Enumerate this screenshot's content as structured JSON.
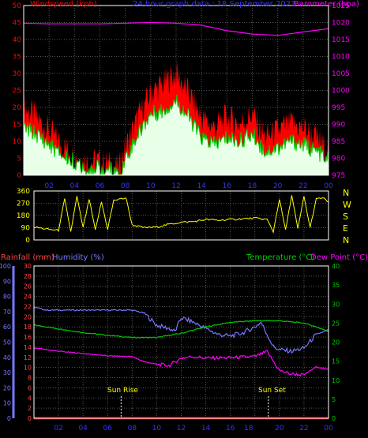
{
  "header": {
    "left": "Windspeed (kph)",
    "center": "24 hour graph data : 18 September 2023",
    "right": "Barometer (hpa)"
  },
  "colors": {
    "wind_gust": "#ff0000",
    "wind_avg": "#00cc00",
    "wind_fill": "#e8ffe8",
    "barometer": "#ff00ff",
    "direction": "#ffff00",
    "rain_axis": "#ff4444",
    "humidity": "#7777ff",
    "temperature": "#00cc00",
    "dew_point": "#ff00ff",
    "rainfall_line": "#ff0000"
  },
  "middle": {
    "compass_letters": [
      "N",
      "W",
      "S",
      "E",
      "N"
    ]
  },
  "lower_header": {
    "rainfall": "Rainfall (mm)",
    "humidity": "Humidity (%)",
    "temperature": "Temperature (°C)",
    "dewpoint": "Dew Point (°C)"
  },
  "annotations": {
    "sunrise": "Sun Rise",
    "sunset": "Sun Set"
  },
  "chart_data": [
    {
      "type": "line",
      "title": "24 hour graph data : 18 September 2023",
      "x_ticks": [
        "02",
        "04",
        "06",
        "08",
        "10",
        "12",
        "14",
        "16",
        "18",
        "20",
        "22",
        "00"
      ],
      "left_axis": {
        "label": "Windspeed (kph)",
        "ticks": [
          0,
          5,
          10,
          15,
          20,
          25,
          30,
          35,
          40,
          45,
          50
        ],
        "ylim": [
          0,
          50
        ]
      },
      "right_axis": {
        "label": "Barometer (hpa)",
        "ticks": [
          975,
          980,
          985,
          990,
          995,
          1000,
          1005,
          1010,
          1015,
          1020,
          1025
        ],
        "ylim": [
          975,
          1025
        ]
      },
      "series": [
        {
          "name": "Windspeed (kph)",
          "hours": [
            0,
            1,
            2,
            3,
            4,
            5,
            6,
            7,
            7.5,
            8,
            9,
            10,
            11,
            12,
            13,
            14,
            15,
            16,
            17,
            18,
            19,
            20,
            21,
            22,
            23,
            24
          ],
          "gust": [
            20,
            17,
            13,
            9,
            6,
            4,
            4,
            3,
            2,
            8,
            17,
            24,
            27,
            30,
            24,
            17,
            14,
            17,
            15,
            18,
            11,
            13,
            15,
            14,
            11,
            7
          ],
          "average": [
            14,
            12,
            9,
            6,
            4,
            3,
            2,
            2,
            1,
            5,
            12,
            18,
            19,
            22,
            17,
            11,
            9,
            11,
            10,
            12,
            7,
            8,
            10,
            9,
            7,
            5
          ]
        },
        {
          "name": "Barometer (hpa)",
          "hours": [
            0,
            2,
            4,
            6,
            8,
            10,
            12,
            14,
            16,
            18,
            20,
            22,
            24
          ],
          "values": [
            1019.8,
            1019.6,
            1019.6,
            1019.6,
            1019.8,
            1020,
            1019.8,
            1019.2,
            1017.6,
            1016.6,
            1016.2,
            1017.2,
            1018.2
          ]
        }
      ]
    },
    {
      "type": "line",
      "y_ticks": [
        0,
        90,
        180,
        270,
        360
      ],
      "ylim": [
        0,
        360
      ],
      "series": [
        {
          "name": "Wind direction (°)",
          "hours": [
            0,
            1,
            2,
            2.5,
            3,
            3.5,
            4,
            4.5,
            5,
            5.5,
            6,
            6.5,
            7,
            7.5,
            8,
            9,
            10,
            11,
            12,
            13,
            14,
            15,
            16,
            17,
            18,
            19,
            19.5,
            20,
            20.5,
            21,
            21.5,
            22,
            22.5,
            23,
            23.5,
            24
          ],
          "values": [
            95,
            80,
            70,
            300,
            60,
            320,
            90,
            300,
            70,
            280,
            80,
            290,
            300,
            310,
            110,
            90,
            95,
            115,
            130,
            135,
            150,
            145,
            150,
            155,
            160,
            150,
            60,
            300,
            70,
            330,
            80,
            320,
            90,
            300,
            310,
            280
          ]
        }
      ]
    },
    {
      "type": "line",
      "x_ticks": [
        "02",
        "04",
        "06",
        "08",
        "10",
        "12",
        "14",
        "16",
        "18",
        "20",
        "22",
        "00"
      ],
      "humidity_axis": {
        "label": "Humidity (%)",
        "ticks": [
          0,
          10,
          20,
          30,
          40,
          50,
          60,
          70,
          80,
          90,
          100
        ],
        "ylim": [
          0,
          100
        ]
      },
      "rainfall_axis": {
        "label": "Rainfall (mm)",
        "ticks": [
          0,
          2,
          4,
          6,
          8,
          10,
          12,
          14,
          16,
          18,
          20,
          22,
          24,
          26,
          28,
          30
        ],
        "ylim": [
          0,
          30
        ]
      },
      "temperature_axis": {
        "label": "Temperature (°C)Dew Point (°C)",
        "ticks": [
          0,
          5,
          10,
          15,
          20,
          25,
          30,
          35,
          40
        ],
        "ylim": [
          0,
          40
        ]
      },
      "markers": {
        "sunrise_hour": 7.1,
        "sunset_hour": 19.1
      },
      "series": [
        {
          "name": "Humidity (%)",
          "hours": [
            0,
            1,
            2,
            4,
            6,
            8,
            9,
            10,
            11,
            11.5,
            12,
            13,
            14,
            15,
            16,
            17,
            18,
            18.5,
            19,
            19.5,
            20,
            21,
            22,
            23,
            24
          ],
          "values": [
            73,
            71,
            71,
            71,
            71,
            71,
            69,
            61,
            59,
            57,
            66,
            63,
            59,
            55,
            54,
            56,
            60,
            63,
            55,
            47,
            45,
            44,
            46,
            55,
            58
          ]
        },
        {
          "name": "Temperature (°C)",
          "hours": [
            0,
            2,
            4,
            6,
            8,
            10,
            12,
            14,
            16,
            18,
            20,
            22,
            23,
            24
          ],
          "values": [
            24.5,
            23.5,
            22.5,
            21.8,
            21.2,
            21.2,
            22.3,
            24,
            25.2,
            25.6,
            25.6,
            25,
            24,
            22.8
          ]
        },
        {
          "name": "Dew Point (°C)",
          "hours": [
            0,
            2,
            4,
            6,
            8,
            9,
            10,
            11,
            12,
            13,
            14,
            16,
            18,
            19,
            20,
            21,
            22,
            23,
            24
          ],
          "values": [
            18.5,
            17.6,
            17,
            16.4,
            16.2,
            14.8,
            14.2,
            13.8,
            15.8,
            16.2,
            15.8,
            15.9,
            16.2,
            17.5,
            12.5,
            11.6,
            11.4,
            13.5,
            12.8
          ]
        },
        {
          "name": "Rainfall (mm)",
          "hours": [
            0,
            24
          ],
          "values": [
            0,
            0
          ]
        }
      ]
    }
  ]
}
